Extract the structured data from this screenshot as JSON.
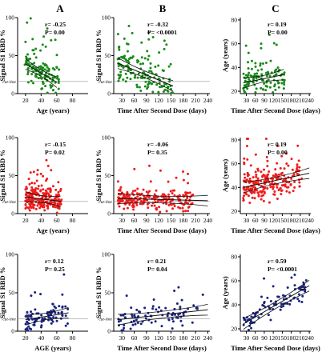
{
  "column_headers": [
    "A",
    "B",
    "C"
  ],
  "chart_data": [
    {
      "type": "scatter",
      "panel": "A1",
      "xlabel": "Age (years)",
      "ylabel": "Signal S1 RBD %",
      "xlim": [
        10,
        100
      ],
      "ylim": [
        0,
        100
      ],
      "xticks": [
        "20",
        "40",
        "60",
        "80"
      ],
      "yticks": [
        "0",
        "50",
        "100"
      ],
      "stats": [
        "r= -0.25",
        "P= 0.00"
      ],
      "cut_label": "cut-line",
      "cut_value": 16,
      "fit": {
        "x1": 20,
        "y1": 39,
        "x2": 60,
        "y2": 15
      },
      "color": "#1a8a1a",
      "points_n": 130,
      "x_range": [
        19,
        63
      ],
      "spread": 14,
      "seed": 11
    },
    {
      "type": "scatter",
      "panel": "B1",
      "xlabel": "Time After Second Dose (days)",
      "ylabel": "Signal S1 RBD %",
      "xlim": [
        10,
        245
      ],
      "ylim": [
        0,
        100
      ],
      "xticks": [
        "30",
        "60",
        "90",
        "120",
        "150",
        "180",
        "210",
        "240"
      ],
      "yticks": [
        "0",
        "50",
        "100"
      ],
      "stats": [
        "r= -0.32",
        "P= <0.0001"
      ],
      "cut_label": "cut-line",
      "cut_value": 16,
      "fit": {
        "x1": 20,
        "y1": 40,
        "x2": 155,
        "y2": 10
      },
      "color": "#1a8a1a",
      "points_n": 150,
      "x_range": [
        20,
        155
      ],
      "spread": 14,
      "seed": 23
    },
    {
      "type": "scatter",
      "panel": "C1",
      "xlabel": "Time After Second Dose (days)",
      "ylabel": "Age (years)",
      "xlim": [
        10,
        245
      ],
      "ylim": [
        18,
        82
      ],
      "xticks": [
        "30",
        "60",
        "90",
        "120",
        "150",
        "180",
        "210",
        "240"
      ],
      "yticks": [
        "20",
        "40",
        "60",
        "80"
      ],
      "stats": [
        "r= 0.19",
        "P= 0.00"
      ],
      "fit": {
        "x1": 20,
        "y1": 27,
        "x2": 155,
        "y2": 34
      },
      "color": "#1a8a1a",
      "points_n": 120,
      "x_range": [
        20,
        160
      ],
      "spread": 8,
      "seed": 37
    },
    {
      "type": "scatter",
      "panel": "A2",
      "xlabel": "Age (years)",
      "ylabel": "Signal S1 RBD %",
      "xlim": [
        10,
        100
      ],
      "ylim": [
        0,
        100
      ],
      "xticks": [
        "20",
        "40",
        "60",
        "80"
      ],
      "yticks": [
        "0",
        "50",
        "100"
      ],
      "stats": [
        "r= -0.15",
        "P= 0.02"
      ],
      "cut_label": "cut-line",
      "cut_value": 16,
      "fit": {
        "x1": 20,
        "y1": 22,
        "x2": 65,
        "y2": 16
      },
      "color": "#ee1c1c",
      "points_n": 230,
      "x_range": [
        20,
        66
      ],
      "spread": 9,
      "seed": 41
    },
    {
      "type": "scatter",
      "panel": "B2",
      "xlabel": "Time After Second Dose (days)",
      "ylabel": "Signal S1 RBD %",
      "xlim": [
        10,
        245
      ],
      "ylim": [
        0,
        100
      ],
      "xticks": [
        "30",
        "60",
        "90",
        "120",
        "150",
        "180",
        "210",
        "240"
      ],
      "yticks": [
        "0",
        "50",
        "100"
      ],
      "stats": [
        "r= -0.06",
        "P= 0.35"
      ],
      "cut_label": "cut-line",
      "cut_value": 16,
      "fit": {
        "x1": 20,
        "y1": 20,
        "x2": 240,
        "y2": 17
      },
      "color": "#ee1c1c",
      "points_n": 230,
      "x_range": [
        20,
        205
      ],
      "spread": 9,
      "seed": 53
    },
    {
      "type": "scatter",
      "panel": "C2",
      "xlabel": "Time After Second Dose (days)",
      "ylabel": "Age (years)",
      "xlim": [
        10,
        245
      ],
      "ylim": [
        18,
        82
      ],
      "xticks": [
        "30",
        "60",
        "90",
        "120",
        "150",
        "180",
        "210",
        "240"
      ],
      "yticks": [
        "20",
        "40",
        "60",
        "80"
      ],
      "stats": [
        "r= 0.19",
        "P= 0.00"
      ],
      "fit": {
        "x1": 20,
        "y1": 40,
        "x2": 240,
        "y2": 52
      },
      "color": "#ee1c1c",
      "points_n": 230,
      "x_range": [
        20,
        215
      ],
      "spread": 8,
      "seed": 67
    },
    {
      "type": "scatter",
      "panel": "A3",
      "xlabel": "AGE (years)",
      "ylabel": "Signal S1 RBD %",
      "xlim": [
        10,
        100
      ],
      "ylim": [
        0,
        100
      ],
      "xticks": [
        "20",
        "40",
        "60",
        "80"
      ],
      "yticks": [
        "0",
        "50",
        "100"
      ],
      "stats": [
        "r= 0.12",
        "P= 0.25"
      ],
      "cut_label": "cut-line",
      "cut_value": 16,
      "fit": {
        "x1": 20,
        "y1": 15,
        "x2": 75,
        "y2": 24
      },
      "color": "#1a237e",
      "points_n": 90,
      "x_range": [
        20,
        75
      ],
      "spread": 9,
      "seed": 71
    },
    {
      "type": "scatter",
      "panel": "B3",
      "xlabel": "Time After Second Dose (days)",
      "ylabel": "Signal S1 RBD %",
      "xlim": [
        10,
        245
      ],
      "ylim": [
        0,
        100
      ],
      "xticks": [
        "30",
        "60",
        "90",
        "120",
        "150",
        "180",
        "210",
        "240"
      ],
      "yticks": [
        "0",
        "50",
        "100"
      ],
      "stats": [
        "r= 0.21",
        "P= 0.04"
      ],
      "cut_label": "cut-line",
      "cut_value": 16,
      "fit": {
        "x1": 20,
        "y1": 15,
        "x2": 240,
        "y2": 28
      },
      "color": "#1a237e",
      "points_n": 90,
      "x_range": [
        20,
        230
      ],
      "spread": 9,
      "seed": 83
    },
    {
      "type": "scatter",
      "panel": "C3",
      "xlabel": "Time After Second Dose (days)",
      "ylabel": "Age (years)",
      "xlim": [
        10,
        245
      ],
      "ylim": [
        18,
        82
      ],
      "xticks": [
        "30",
        "60",
        "90",
        "120",
        "150",
        "180",
        "210",
        "240"
      ],
      "yticks": [
        "20",
        "40",
        "60",
        "80"
      ],
      "stats": [
        "r= 0.59",
        "P= <0.0001"
      ],
      "fit": {
        "x1": 20,
        "y1": 24,
        "x2": 240,
        "y2": 56
      },
      "color": "#1a237e",
      "points_n": 90,
      "x_range": [
        20,
        230
      ],
      "spread": 6,
      "seed": 97
    }
  ]
}
